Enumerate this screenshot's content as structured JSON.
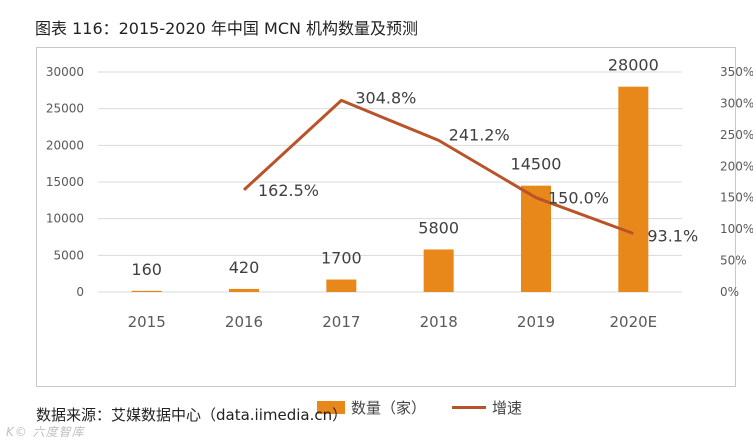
{
  "title": "图表 116：2015-2020 年中国 MCN 机构数量及预测",
  "source": "数据来源：艾媒数据中心（data.iimedia.cn）",
  "watermark": "K© 六度智库",
  "colors": {
    "bar": "#e8881a",
    "line": "#b9532a",
    "grid": "#d9d9d9",
    "axis_text": "#595959"
  },
  "chart_data": {
    "type": "bar",
    "title": "2015-2020 年中国 MCN 机构数量及预测",
    "categories": [
      "2015",
      "2016",
      "2017",
      "2018",
      "2019",
      "2020E"
    ],
    "series": [
      {
        "name": "数量（家）",
        "type": "bar",
        "axis": "left",
        "values": [
          160,
          420,
          1700,
          5800,
          14500,
          28000
        ],
        "labels": [
          "160",
          "420",
          "1700",
          "5800",
          "14500",
          "28000"
        ]
      },
      {
        "name": "增速",
        "type": "line",
        "axis": "right",
        "values": [
          null,
          162.5,
          304.8,
          241.2,
          150.0,
          93.1
        ],
        "labels": [
          "",
          "162.5%",
          "304.8%",
          "241.2%",
          "150.0%",
          "93.1%"
        ]
      }
    ],
    "y_left": {
      "ticks": [
        0,
        5000,
        10000,
        15000,
        20000,
        25000,
        30000
      ],
      "range": [
        0,
        30000
      ]
    },
    "y_right": {
      "ticks": [
        "0%",
        "50%",
        "100%",
        "150%",
        "200%",
        "250%",
        "300%",
        "350%"
      ],
      "range": [
        0,
        350
      ]
    },
    "grid": true,
    "legend_position": "bottom"
  }
}
